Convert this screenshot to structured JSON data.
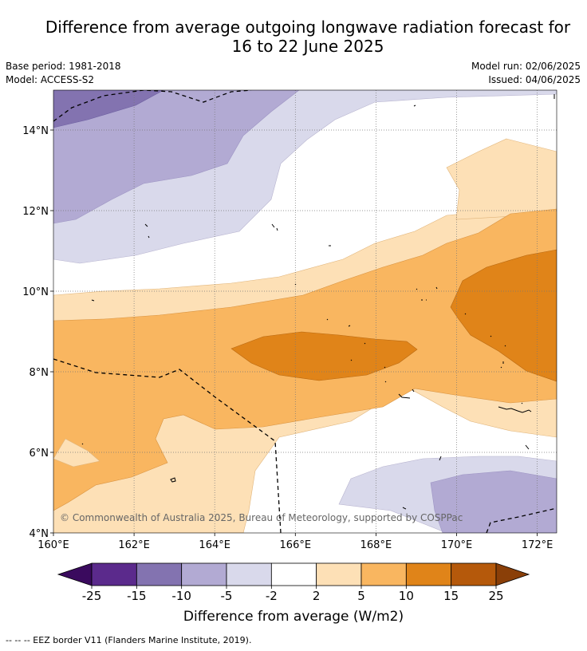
{
  "title_line1": "Difference from average outgoing longwave radiation forecast for",
  "title_line2": "16 to 22 June 2025",
  "base_period": "Base period: 1981-2018",
  "model": "Model: ACCESS-S2",
  "model_run": "Model run: 02/06/2025",
  "issued": "Issued: 04/06/2025",
  "copyright": "© Commonwealth of Australia 2025, Bureau of Meteorology, supported by COSPPac",
  "lon_labels": [
    "160°E",
    "162°E",
    "164°E",
    "166°E",
    "168°E",
    "170°E",
    "172°E"
  ],
  "lat_labels": [
    "14°N",
    "12°N",
    "10°N",
    "8°N",
    "6°N",
    "4°N"
  ],
  "colorbar": {
    "ticks": [
      "-25",
      "-15",
      "-10",
      "-5",
      "-2",
      "2",
      "5",
      "10",
      "15",
      "25"
    ],
    "colors": [
      "#5b2a8c",
      "#8373b0",
      "#b2aad3",
      "#d9d9eb",
      "#ffffff",
      "#fde0b6",
      "#f9b660",
      "#e08419",
      "#b5590b"
    ],
    "under_color": "#3a0a5e",
    "over_color": "#8a3f08",
    "label": "Difference from average (W/m2)"
  },
  "legend_eez": "-- -- -- EEZ border V11 (Flanders Marine Institute, 2019)."
}
